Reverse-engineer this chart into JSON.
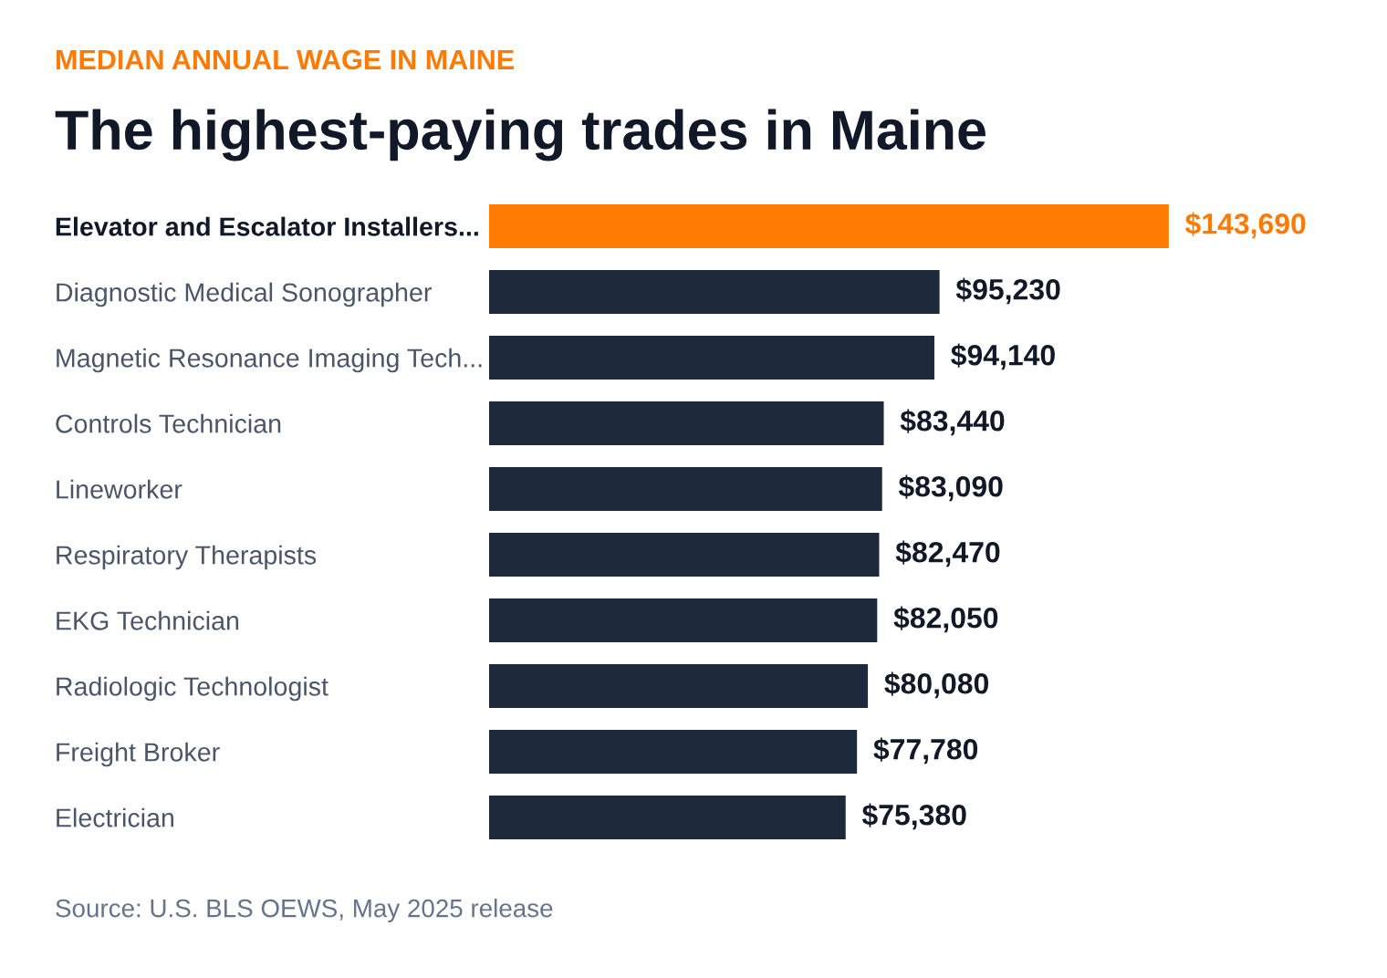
{
  "chart_data": {
    "type": "bar",
    "orientation": "horizontal",
    "subtitle": "MEDIAN ANNUAL WAGE IN MAINE",
    "title": "The highest-paying trades in Maine",
    "categories": [
      "Elevator and Escalator Installers...",
      "Diagnostic Medical Sonographer",
      "Magnetic Resonance Imaging Tech...",
      "Controls Technician",
      "Lineworker",
      "Respiratory Therapists",
      "EKG Technician",
      "Radiologic Technologist",
      "Freight Broker",
      "Electrician"
    ],
    "values": [
      143690,
      95230,
      94140,
      83440,
      83090,
      82470,
      82050,
      80080,
      77780,
      75380
    ],
    "colors": [
      "#ff7a00",
      "#1e293b",
      "#1e293b",
      "#1e293b",
      "#1e293b",
      "#1e293b",
      "#1e293b",
      "#1e293b",
      "#1e293b",
      "#1e293b"
    ],
    "value_labels": [
      "$143,690",
      "$95,230",
      "$94,140",
      "$83,440",
      "$83,090",
      "$82,470",
      "$82,050",
      "$80,080",
      "$77,780",
      "$75,380"
    ],
    "annotations": [
      "Source: U.S. BLS OEWS, May 2025 release"
    ],
    "grid": false,
    "legend": false
  }
}
